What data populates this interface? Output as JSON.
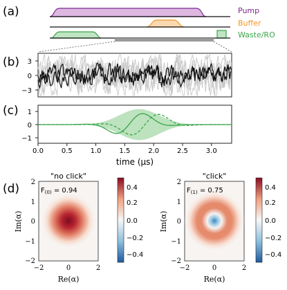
{
  "panel_labels": [
    "(a)",
    "(b)",
    "(c)",
    "(d)"
  ],
  "panel_a": {
    "legend": [
      {
        "label": "Pump",
        "color": "#7b2a8f"
      },
      {
        "label": "Buffer",
        "color": "#f0952b"
      },
      {
        "label": "Waste/RO",
        "color": "#3aa54a"
      }
    ]
  },
  "panel_b": {
    "y_ticks": [
      "3",
      "0",
      "−3"
    ]
  },
  "panel_c": {
    "y_ticks": [
      "1",
      "0",
      "−1"
    ],
    "x_ticks": [
      "0.0",
      "0.5",
      "1.0",
      "1.5",
      "2.0",
      "2.5",
      "3.0"
    ],
    "xlabel": "time (µs)"
  },
  "panel_d": {
    "left": {
      "title": "\"no click\"",
      "fidelity": "F",
      "fidelity_sub": "(0)",
      "fidelity_val": " = 0.94"
    },
    "right": {
      "title": "\"click\"",
      "fidelity": "F",
      "fidelity_sub": "(1)",
      "fidelity_val": " = 0.75"
    },
    "xlabel": "Re(α)",
    "ylabel": "Im(α)",
    "axis_ticks": [
      "−2",
      "0",
      "2"
    ],
    "y_ticks": [
      "2",
      "1",
      "0",
      "−1",
      "−2"
    ],
    "colorbar_ticks": [
      "0.4",
      "0.2",
      "0.0",
      "−0.2",
      "−0.4"
    ]
  },
  "chart_data": [
    {
      "type": "line",
      "panel": "b",
      "yticks": [
        3,
        0,
        -3
      ],
      "description_free": true
    },
    {
      "type": "line",
      "panel": "c",
      "xlim": [
        0.0,
        3.35
      ],
      "ylim": [
        -1.2,
        1.2
      ],
      "xticks": [
        0.0,
        0.5,
        1.0,
        1.5,
        2.0,
        2.5,
        3.0
      ],
      "yticks": [
        1,
        0,
        -1
      ]
    },
    {
      "type": "heatmap",
      "panel": "d-left",
      "xlim": [
        -2,
        2
      ],
      "ylim": [
        -2,
        2
      ],
      "clim": [
        -0.5,
        0.5
      ],
      "fidelity": 0.94
    },
    {
      "type": "heatmap",
      "panel": "d-right",
      "xlim": [
        -2,
        2
      ],
      "ylim": [
        -2,
        2
      ],
      "clim": [
        -0.5,
        0.5
      ],
      "fidelity": 0.75
    }
  ]
}
